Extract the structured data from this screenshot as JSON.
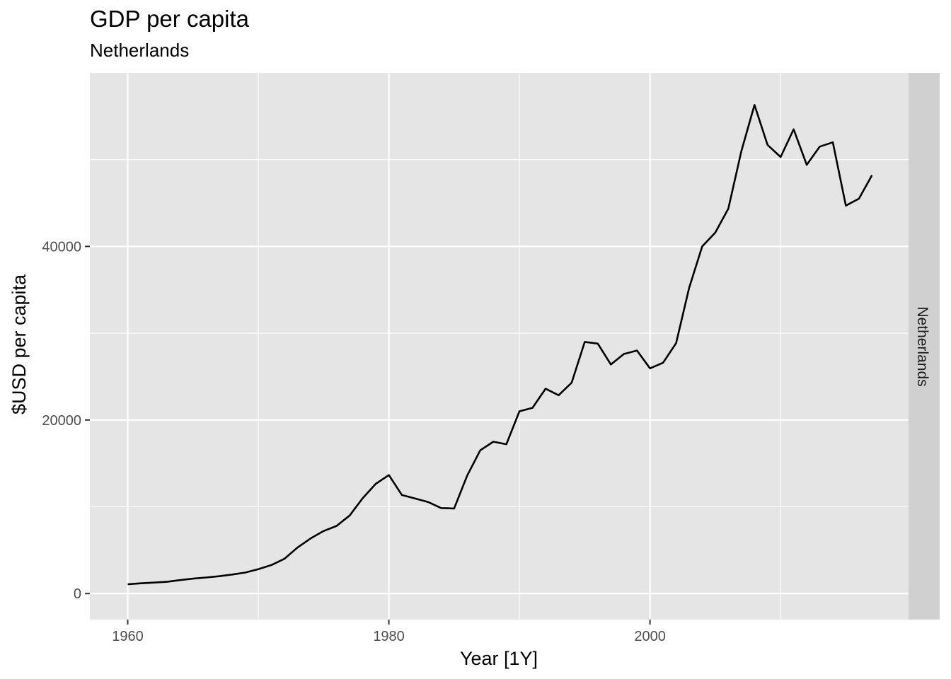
{
  "chart_data": {
    "type": "line",
    "title": "GDP per capita",
    "subtitle": "Netherlands",
    "xlabel": "Year [1Y]",
    "ylabel": "$USD per capita",
    "facet_label": "Netherlands",
    "xlim": [
      1957.1,
      2019.8
    ],
    "ylim": [
      -3000,
      60000
    ],
    "x_ticks": [
      1960,
      1980,
      2000
    ],
    "x_minor_ticks": [
      1970,
      1990,
      2010
    ],
    "y_ticks": [
      0,
      20000,
      40000
    ],
    "y_minor_ticks": [
      10000,
      30000,
      50000
    ],
    "x_tick_labels": [
      "1960",
      "1980",
      "2000"
    ],
    "y_tick_labels": [
      "0",
      "20000",
      "40000"
    ],
    "grid": true,
    "line_color": "#000000",
    "panel_color": "#e5e5e5",
    "strip_color": "#d0d0d0",
    "series": [
      {
        "x": [
          1960,
          1961,
          1962,
          1963,
          1964,
          1965,
          1966,
          1967,
          1968,
          1969,
          1970,
          1971,
          1972,
          1973,
          1974,
          1975,
          1976,
          1977,
          1978,
          1979,
          1980,
          1981,
          1982,
          1983,
          1984,
          1985,
          1986,
          1987,
          1988,
          1989,
          1990,
          1991,
          1992,
          1993,
          1994,
          1995,
          1996,
          1997,
          1998,
          1999,
          2000,
          2001,
          2002,
          2003,
          2004,
          2005,
          2006,
          2007,
          2008,
          2009,
          2010,
          2011,
          2012,
          2013,
          2014,
          2015,
          2016,
          2017
        ],
        "values": [
          1070,
          1180,
          1260,
          1350,
          1550,
          1720,
          1850,
          2000,
          2190,
          2420,
          2800,
          3280,
          4000,
          5300,
          6350,
          7200,
          7800,
          9000,
          11000,
          12650,
          13650,
          11350,
          10950,
          10550,
          9850,
          9800,
          13600,
          16500,
          17500,
          17200,
          21000,
          21400,
          23600,
          22850,
          24300,
          29000,
          28800,
          26400,
          27600,
          28000,
          25950,
          26600,
          28850,
          35250,
          40000,
          41600,
          44350,
          51000,
          56300,
          51700,
          50300,
          53500,
          49400,
          51500,
          52000,
          44700,
          45500,
          48200
        ]
      }
    ]
  }
}
